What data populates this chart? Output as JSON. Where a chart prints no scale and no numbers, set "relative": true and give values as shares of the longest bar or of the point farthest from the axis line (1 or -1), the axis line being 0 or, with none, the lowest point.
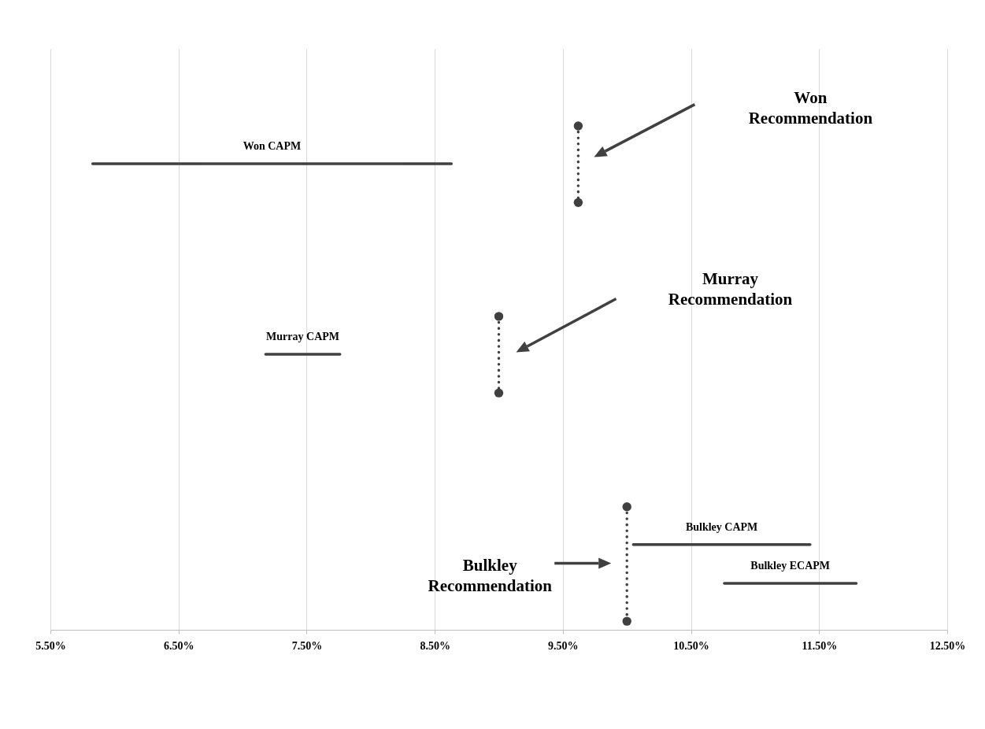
{
  "chart_data": {
    "type": "line",
    "relative": true,
    "grid": "x",
    "xlim": [
      5.5,
      12.5
    ],
    "xticks": [
      {
        "value": 5.5,
        "label": "5.50%"
      },
      {
        "value": 6.5,
        "label": "6.50%"
      },
      {
        "value": 7.5,
        "label": "7.50%"
      },
      {
        "value": 8.5,
        "label": "8.50%"
      },
      {
        "value": 9.5,
        "label": "9.50%"
      },
      {
        "value": 10.5,
        "label": "10.50%"
      },
      {
        "value": 11.5,
        "label": "11.50%"
      },
      {
        "value": 12.5,
        "label": "12.50%"
      }
    ],
    "series": [
      {
        "name": "Won CAPM",
        "color": "#404040",
        "x": [
          5.83,
          8.63
        ],
        "values": [
          0.925,
          0.925
        ],
        "line_style": "solid",
        "marker": "none"
      },
      {
        "color": "#404040",
        "x": [
          9.62,
          9.62
        ],
        "values": [
          1.0,
          0.848
        ],
        "line_style": "dotted",
        "marker": "circle"
      },
      {
        "name": "Murray CAPM",
        "color": "#404040",
        "x": [
          7.18,
          7.76
        ],
        "values": [
          0.547,
          0.547
        ],
        "line_style": "solid",
        "marker": "none"
      },
      {
        "color": "#404040",
        "x": [
          9.0,
          9.0
        ],
        "values": [
          0.622,
          0.47
        ],
        "line_style": "dotted",
        "marker": "circle"
      },
      {
        "name": "Bulkley CAPM",
        "color": "#404040",
        "x": [
          10.05,
          11.43
        ],
        "values": [
          0.169,
          0.169
        ],
        "line_style": "solid",
        "marker": "none"
      },
      {
        "name": "Bulkley ECAPM",
        "color": "#404040",
        "x": [
          10.76,
          11.79
        ],
        "values": [
          0.092,
          0.092
        ],
        "line_style": "solid",
        "marker": "none"
      },
      {
        "color": "#404040",
        "x": [
          10.0,
          10.0
        ],
        "values": [
          0.244,
          0.017
        ],
        "line_style": "dotted",
        "marker": "circle"
      }
    ],
    "annotations": [
      "Won Recommendation",
      "Murray Recommendation",
      "Bulkley Recommendation"
    ]
  }
}
